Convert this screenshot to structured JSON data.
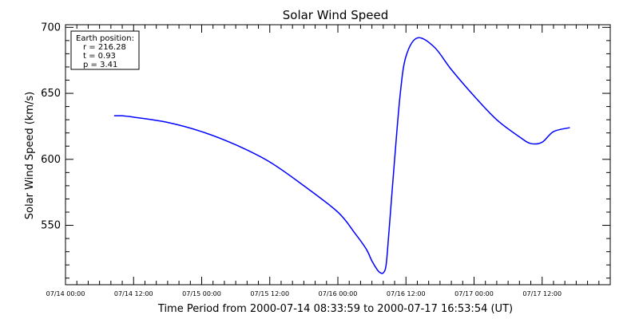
{
  "chart_data": {
    "type": "line",
    "title": "Solar Wind Speed",
    "xlabel": "Time Period from 2000-07-14 08:33:59 to 2000-07-17 16:53:54 (UT)",
    "ylabel": "Solar Wind Speed (km/s)",
    "xlim": [
      "2000-07-14 00:00",
      "2000-07-18 00:00"
    ],
    "ylim": [
      505,
      702
    ],
    "xtick_labels": [
      "07/14 00:00",
      "07/14 12:00",
      "07/15 00:00",
      "07/15 12:00",
      "07/16 00:00",
      "07/16 12:00",
      "07/17 00:00",
      "07/17 12:00"
    ],
    "xticks": [
      "2000-07-14 00:00",
      "2000-07-14 12:00",
      "2000-07-15 00:00",
      "2000-07-15 12:00",
      "2000-07-16 00:00",
      "2000-07-16 12:00",
      "2000-07-17 00:00",
      "2000-07-17 12:00"
    ],
    "ytick_labels": [
      "550",
      "600",
      "650",
      "700"
    ],
    "yticks": [
      550,
      600,
      650,
      700
    ],
    "series": [
      {
        "color": "#0000ff",
        "x": [
          "2000-07-14 08:34",
          "2000-07-14 10:00",
          "2000-07-14 12:00",
          "2000-07-14 18:00",
          "2000-07-15 00:00",
          "2000-07-15 06:00",
          "2000-07-15 12:00",
          "2000-07-15 18:00",
          "2000-07-16 00:00",
          "2000-07-16 03:00",
          "2000-07-16 05:00",
          "2000-07-16 06:00",
          "2000-07-16 07:00",
          "2000-07-16 07:30",
          "2000-07-16 08:00",
          "2000-07-16 08:30",
          "2000-07-16 09:00",
          "2000-07-16 10:00",
          "2000-07-16 11:00",
          "2000-07-16 12:00",
          "2000-07-16 14:00",
          "2000-07-16 17:00",
          "2000-07-16 20:00",
          "2000-07-17 00:00",
          "2000-07-17 04:00",
          "2000-07-17 08:00",
          "2000-07-17 10:00",
          "2000-07-17 12:00",
          "2000-07-17 14:00",
          "2000-07-17 16:53"
        ],
        "y": [
          633,
          633,
          632,
          628,
          621,
          611,
          598,
          580,
          560,
          544,
          532,
          523,
          516,
          514,
          514,
          520,
          545,
          600,
          650,
          678,
          692,
          685,
          668,
          648,
          630,
          617,
          612,
          613,
          621,
          624
        ]
      }
    ],
    "annotation": {
      "header": "Earth position:",
      "lines": [
        "r = 216.28",
        "t = 0.93",
        "p = 3.41"
      ]
    },
    "grid": false,
    "legend": "none"
  }
}
